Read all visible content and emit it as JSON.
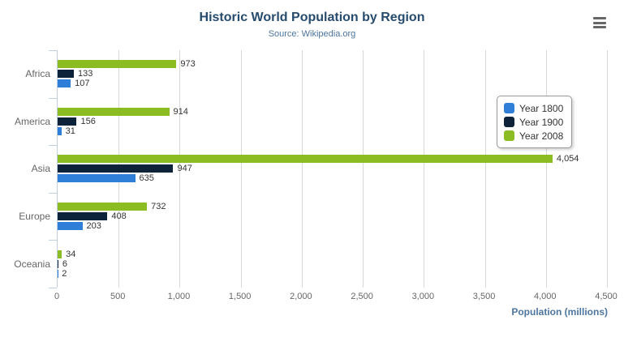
{
  "header": {
    "title": "Historic World Population by Region",
    "subtitle": "Source: Wikipedia.org"
  },
  "context_menu": {
    "icon": "hamburger-menu-icon",
    "color": "#666666"
  },
  "chart_data": {
    "type": "bar",
    "orientation": "horizontal",
    "title": "Historic World Population by Region",
    "subtitle": "Source: Wikipedia.org",
    "categories": [
      "Africa",
      "America",
      "Asia",
      "Europe",
      "Oceania"
    ],
    "series": [
      {
        "name": "Year 1800",
        "color": "#2f7ed8",
        "values": [
          107,
          31,
          635,
          203,
          2
        ]
      },
      {
        "name": "Year 1900",
        "color": "#0d233a",
        "values": [
          133,
          156,
          947,
          408,
          6
        ]
      },
      {
        "name": "Year 2008",
        "color": "#8bbc21",
        "values": [
          973,
          914,
          4054,
          732,
          34
        ]
      }
    ],
    "bar_order_top_to_bottom": [
      "Year 2008",
      "Year 1900",
      "Year 1800"
    ],
    "xlabel": "Population (millions)",
    "xlim": [
      0,
      4500
    ],
    "x_ticks": [
      0,
      500,
      1000,
      1500,
      2000,
      2500,
      3000,
      3500,
      4000,
      4500
    ],
    "x_tick_labels": [
      "0",
      "500",
      "1,000",
      "1,500",
      "2,000",
      "2,500",
      "3,000",
      "3,500",
      "4,000",
      "4,500"
    ],
    "grid": true,
    "data_labels": true,
    "legend_position": "right",
    "colors": {
      "title": "#274b6d",
      "subtitle": "#4d759e",
      "axis_title": "#4d759e",
      "axis_line": "#c0d0e0",
      "gridline": "#d8d8d8",
      "category_label": "#666666",
      "tick_label": "#666666",
      "data_label": "#333333"
    }
  }
}
